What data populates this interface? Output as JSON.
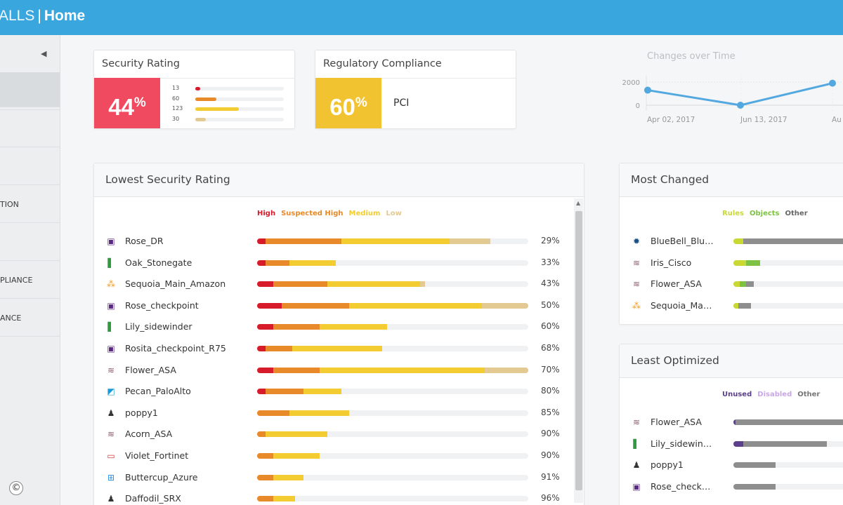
{
  "header": {
    "app_fragment": "ALLS",
    "separator": "|",
    "page": "Home"
  },
  "sidebar": {
    "collapse_icon": "caret-left-icon",
    "items": [
      {
        "label": ""
      },
      {
        "label": ""
      },
      {
        "label": ""
      },
      {
        "label": "TION"
      },
      {
        "label": ""
      },
      {
        "label": "PLIANCE"
      },
      {
        "label": "ANCE"
      }
    ],
    "copyright": "©"
  },
  "security_rating": {
    "title": "Security Rating",
    "value": "44",
    "unit": "%",
    "color": "#ef4a60",
    "rows": [
      {
        "label": "13",
        "value": 13,
        "color": "#d81b2b"
      },
      {
        "label": "60",
        "value": 60,
        "color": "#e98a2a"
      },
      {
        "label": "123",
        "value": 123,
        "color": "#f2cc31"
      },
      {
        "label": "30",
        "value": 30,
        "color": "#e3c992"
      }
    ],
    "max": 250
  },
  "regulatory": {
    "title": "Regulatory Compliance",
    "value": "60",
    "unit": "%",
    "color": "#f2c330",
    "standard": "PCI"
  },
  "changes": {
    "title": "Changes over Time",
    "y_ticks": [
      "2000",
      "0"
    ],
    "x_ticks": [
      "Apr 02, 2017",
      "Jun 13, 2017",
      "Au"
    ],
    "line_color": "#54a8e0",
    "points": [
      1300,
      0,
      1900
    ]
  },
  "lowest": {
    "title": "Lowest Security Rating",
    "legend": [
      {
        "label": "High",
        "color": "#d81b2b"
      },
      {
        "label": "Suspected High",
        "color": "#e98a2a"
      },
      {
        "label": "Medium",
        "color": "#f2cc31"
      },
      {
        "label": "Low",
        "color": "#e3c992"
      }
    ],
    "rows": [
      {
        "name": "Rose_DR",
        "icon": "checkpoint-icon",
        "pct": "29%",
        "segs": [
          3,
          28,
          40,
          15
        ]
      },
      {
        "name": "Oak_Stonegate",
        "icon": "stonegate-icon",
        "pct": "33%",
        "segs": [
          3,
          9,
          17,
          0
        ]
      },
      {
        "name": "Sequoia_Main_Amazon",
        "icon": "aws-icon",
        "pct": "43%",
        "segs": [
          6,
          20,
          34,
          2
        ]
      },
      {
        "name": "Rose_checkpoint",
        "icon": "checkpoint-icon",
        "pct": "50%",
        "segs": [
          9,
          25,
          49,
          19
        ]
      },
      {
        "name": "Lily_sidewinder",
        "icon": "stonegate-icon",
        "pct": "60%",
        "segs": [
          6,
          17,
          25,
          0
        ]
      },
      {
        "name": "Rosita_checkpoint_R75",
        "icon": "checkpoint-icon",
        "pct": "68%",
        "segs": [
          3,
          10,
          33,
          0
        ]
      },
      {
        "name": "Flower_ASA",
        "icon": "cisco-icon",
        "pct": "70%",
        "segs": [
          6,
          17,
          61,
          17
        ]
      },
      {
        "name": "Pecan_PaloAlto",
        "icon": "paloalto-icon",
        "pct": "80%",
        "segs": [
          3,
          14,
          14,
          0
        ]
      },
      {
        "name": "poppy1",
        "icon": "linux-icon",
        "pct": "85%",
        "segs": [
          0,
          12,
          22,
          0
        ]
      },
      {
        "name": "Acorn_ASA",
        "icon": "cisco-icon",
        "pct": "90%",
        "segs": [
          0,
          3,
          23,
          0
        ]
      },
      {
        "name": "Violet_Fortinet",
        "icon": "fortinet-icon",
        "pct": "90%",
        "segs": [
          0,
          6,
          17,
          0
        ]
      },
      {
        "name": "Buttercup_Azure",
        "icon": "azure-icon",
        "pct": "91%",
        "segs": [
          0,
          6,
          11,
          0
        ]
      },
      {
        "name": "Daffodil_SRX",
        "icon": "linux-icon",
        "pct": "96%",
        "segs": [
          0,
          6,
          8,
          0
        ]
      }
    ]
  },
  "most_changed": {
    "title": "Most Changed",
    "legend": [
      {
        "label": "Rules",
        "color": "#c9d833"
      },
      {
        "label": "Objects",
        "color": "#7dc242"
      },
      {
        "label": "Other",
        "color": "#666666"
      }
    ],
    "rows": [
      {
        "name": "BlueBell_Blu…",
        "icon": "gear-icon",
        "segs": [
          8,
          0,
          92
        ]
      },
      {
        "name": "Iris_Cisco",
        "icon": "cisco-icon",
        "segs": [
          10,
          11,
          0
        ]
      },
      {
        "name": "Flower_ASA",
        "icon": "cisco-icon",
        "segs": [
          5,
          5,
          6
        ]
      },
      {
        "name": "Sequoia_Ma…",
        "icon": "aws-icon",
        "segs": [
          4,
          0,
          10
        ]
      }
    ]
  },
  "least_optimized": {
    "title": "Least Optimized",
    "legend": [
      {
        "label": "Unused",
        "color": "#5b3f8a"
      },
      {
        "label": "Disabled",
        "color": "#c8a6e6"
      },
      {
        "label": "Other",
        "color": "#777777"
      }
    ],
    "rows": [
      {
        "name": "Flower_ASA",
        "icon": "cisco-icon",
        "segs": [
          2,
          0,
          98
        ]
      },
      {
        "name": "Lily_sidewin…",
        "icon": "stonegate-icon",
        "segs": [
          8,
          0,
          70
        ]
      },
      {
        "name": "poppy1",
        "icon": "linux-icon",
        "segs": [
          0,
          0,
          35
        ]
      },
      {
        "name": "Rose_check…",
        "icon": "checkpoint-icon",
        "segs": [
          0,
          0,
          35
        ]
      }
    ]
  }
}
